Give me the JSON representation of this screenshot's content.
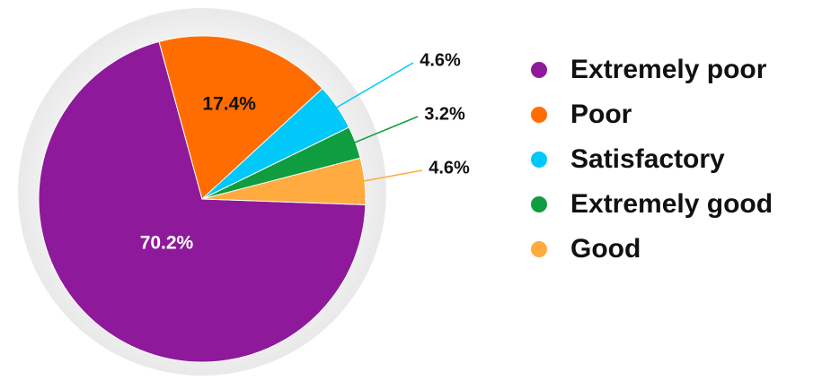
{
  "chart_data": {
    "type": "pie",
    "categories": [
      "Extremely poor",
      "Poor",
      "Satisfactory",
      "Extremely good",
      "Good"
    ],
    "values": [
      70.2,
      17.4,
      4.6,
      3.2,
      4.6
    ],
    "value_labels": [
      "70.2%",
      "17.4%",
      "4.6%",
      "3.2%",
      "4.6%"
    ],
    "colors": [
      "#8e1a9b",
      "#ff6d00",
      "#00c8f8",
      "#0f9d3f",
      "#ffab40"
    ],
    "legend": "right"
  }
}
